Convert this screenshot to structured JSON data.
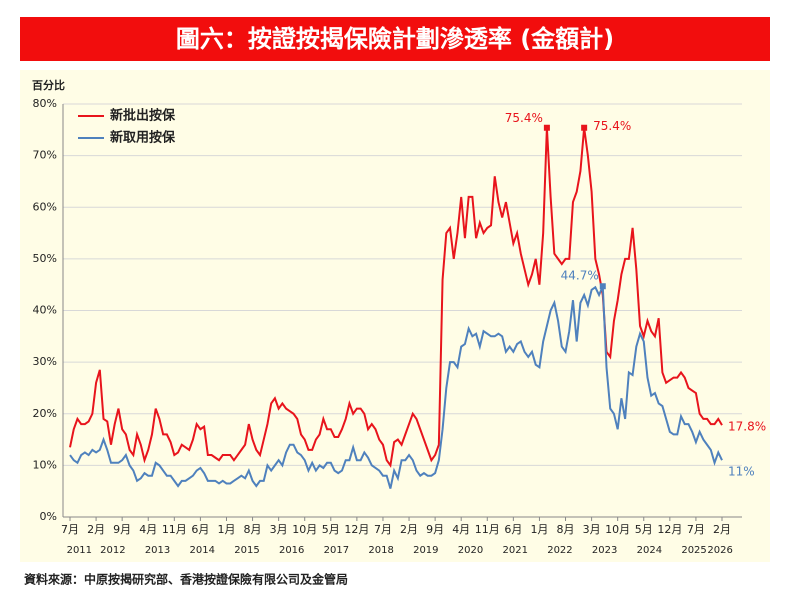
{
  "chart_data": {
    "type": "line",
    "title": "圖六：按證按揭保險計劃滲透率 (金額計)",
    "y_label": "百分比",
    "source": "資料來源：中原按揭研究部、香港按證保險有限公司及金管局",
    "categories": [
      "7月",
      null,
      null,
      null,
      null,
      null,
      null,
      "2月",
      null,
      null,
      null,
      null,
      null,
      null,
      "9月",
      null,
      null,
      null,
      null,
      null,
      null,
      "4月",
      null,
      null,
      null,
      null,
      null,
      null,
      "11月",
      null,
      null,
      null,
      null,
      null,
      null,
      "6月",
      null,
      null,
      null,
      null,
      null,
      null,
      "1月",
      null,
      null,
      null,
      null,
      null,
      null,
      "8月",
      null,
      null,
      null,
      null,
      null,
      null,
      "3月",
      null,
      null,
      null,
      null,
      null,
      null,
      "10月",
      null,
      null,
      null,
      null,
      null,
      null,
      "5月",
      null,
      null,
      null,
      null,
      null,
      null,
      "12月",
      null,
      null,
      null,
      null,
      null,
      null,
      "7月",
      null,
      null,
      null,
      null,
      null,
      null,
      "2月",
      null,
      null,
      null,
      null,
      null,
      null,
      "9月",
      null,
      null,
      null,
      null,
      null,
      null,
      "4月",
      null,
      null,
      null,
      null,
      null,
      null,
      "11月",
      null,
      null,
      null,
      null,
      null,
      null,
      "6月",
      null,
      null,
      null,
      null,
      null,
      null,
      "1月",
      null,
      null,
      null,
      null,
      null,
      null,
      "8月",
      null,
      null,
      null,
      null,
      null,
      null,
      "3月",
      null,
      null,
      null,
      null,
      null,
      null,
      "10月",
      null,
      null,
      null,
      null,
      null,
      null,
      "5月",
      null,
      null,
      null,
      null,
      null,
      null,
      "12月",
      null,
      null,
      null,
      null,
      null,
      null,
      "7月",
      null,
      null,
      null,
      null,
      null,
      null,
      "2月"
    ],
    "years": [
      2011,
      2012,
      2013,
      2014,
      2015,
      2016,
      2017,
      2018,
      2019,
      2020,
      2021,
      2022,
      2023,
      2024,
      2025,
      2026
    ],
    "series": [
      {
        "name": "新批出按保",
        "color": "#e8141c",
        "values": [
          13.5,
          17,
          19,
          18,
          18,
          18.5,
          20,
          26,
          28.5,
          19,
          18.5,
          14,
          18,
          21,
          17,
          16,
          13,
          12,
          16,
          14,
          11,
          13,
          16,
          21,
          19,
          16,
          16,
          14.5,
          12,
          12.5,
          14,
          13.5,
          13,
          15,
          18,
          17,
          17.5,
          12,
          12,
          11.5,
          11,
          12,
          12,
          12,
          11,
          12,
          13,
          14,
          18,
          15,
          13,
          12,
          15,
          18,
          22,
          23,
          21,
          22,
          21,
          20.5,
          20,
          19,
          16,
          15,
          13,
          13,
          15,
          16,
          19,
          17,
          17,
          15.5,
          15.5,
          17,
          19,
          22,
          20,
          21,
          21,
          20,
          17,
          18,
          17,
          15,
          14,
          11,
          10,
          14.5,
          15,
          14,
          16,
          18,
          20,
          19,
          17,
          15,
          13,
          11,
          12,
          14,
          46,
          55,
          56,
          50,
          55,
          62,
          54,
          62,
          62,
          54,
          57,
          55,
          56,
          56.5,
          66,
          61,
          58,
          61,
          57,
          53,
          55,
          51,
          48,
          45,
          47,
          50,
          45,
          55,
          75.4,
          62,
          51,
          50,
          49,
          50,
          50,
          61,
          63,
          67,
          75.4,
          70,
          63,
          50,
          47,
          43,
          32,
          31,
          38,
          42,
          47,
          50,
          50,
          56,
          48,
          37,
          35,
          38,
          36,
          35,
          38.5,
          28,
          26,
          26.5,
          27,
          27,
          28,
          27,
          25,
          24.5,
          24,
          20,
          19,
          19,
          18,
          18,
          19,
          17.8
        ]
      },
      {
        "name": "新取用按保",
        "color": "#4f81bd",
        "values": [
          12,
          11,
          10.5,
          12,
          12.5,
          12,
          13,
          12.5,
          13,
          15,
          13,
          10.5,
          10.5,
          10.5,
          11,
          12,
          10,
          9,
          7,
          7.5,
          8.5,
          8,
          8,
          10.5,
          10,
          9,
          8,
          8,
          7,
          6,
          7,
          7,
          7.5,
          8,
          9,
          9.5,
          8.5,
          7,
          7,
          7,
          6.5,
          7,
          6.5,
          6.5,
          7,
          7.5,
          8,
          7.5,
          9,
          7,
          6,
          7,
          7,
          10,
          9,
          10,
          11,
          10,
          12.5,
          14,
          14,
          12.5,
          12,
          11,
          9,
          10.5,
          9,
          10,
          9.5,
          10.5,
          10.5,
          9,
          8.5,
          9,
          11,
          11,
          13.5,
          11,
          11,
          12.5,
          11.5,
          10,
          9.5,
          9,
          8,
          8,
          5.5,
          9,
          7.5,
          11,
          11,
          12,
          11,
          9,
          8,
          8.5,
          8,
          8,
          8.5,
          11,
          17,
          25,
          30,
          30,
          29,
          33,
          33.5,
          36.5,
          35,
          35.5,
          33,
          36,
          35.5,
          35,
          35,
          35.5,
          35,
          32,
          33,
          32,
          33.5,
          34,
          32,
          31,
          32,
          29.5,
          29,
          34,
          37,
          40,
          41.5,
          38,
          33,
          32,
          36,
          42,
          34,
          41.5,
          43,
          41,
          44,
          44.5,
          43,
          44.7,
          29,
          21,
          20,
          17,
          23,
          19,
          28,
          27.5,
          33,
          35.5,
          34,
          27,
          23.5,
          24,
          22,
          21.5,
          19,
          16.5,
          16,
          16,
          19.5,
          18,
          18,
          16.5,
          14.5,
          16.5,
          15,
          14,
          13,
          10.5,
          12.5,
          11
        ]
      }
    ],
    "annotations": [
      {
        "label": "75.4%",
        "series": 0,
        "index": 128
      },
      {
        "label": "75.4%",
        "series": 0,
        "index": 138
      },
      {
        "label": "17.8%",
        "series": 0,
        "index": 175
      },
      {
        "label": "44.7%",
        "series": 1,
        "index": 143
      },
      {
        "label": "11%",
        "series": 1,
        "index": 175
      }
    ],
    "ylim": [
      0,
      80
    ],
    "yticks": [
      {
        "value": 0,
        "label": "0%"
      },
      {
        "value": 10,
        "label": "10%"
      },
      {
        "value": 20,
        "label": "20%"
      },
      {
        "value": 30,
        "label": "30%"
      },
      {
        "value": 40,
        "label": "40%"
      },
      {
        "value": 50,
        "label": "50%"
      },
      {
        "value": 60,
        "label": "60%"
      },
      {
        "value": 70,
        "label": "70%"
      },
      {
        "value": 80,
        "label": "80%"
      }
    ],
    "grid": true,
    "legend": "top-left"
  }
}
